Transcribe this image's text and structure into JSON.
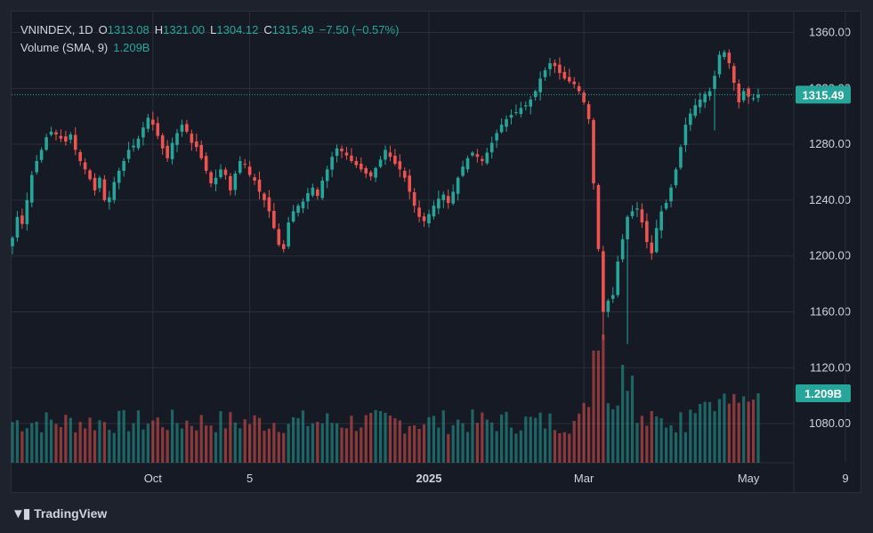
{
  "legend": {
    "symbol": "VNINDEX, 1D",
    "o_label": "O",
    "o_value": "1313.08",
    "h_label": "H",
    "h_value": "1321.00",
    "l_label": "L",
    "l_value": "1304.12",
    "c_label": "C",
    "c_value": "1315.49",
    "change": "−7.50 (−0.57%)",
    "volume_label": "Volume (SMA, 9)",
    "volume_value": "1.209B"
  },
  "badges": {
    "last_price": "1315.49",
    "last_volume": "1.209B"
  },
  "brand": {
    "name": "TradingView"
  },
  "colors": {
    "up": "#26a69a",
    "down": "#ef5350",
    "background": "#161a25",
    "grid": "#2a2e39",
    "text": "#d1d4dc"
  },
  "chart_data": {
    "type": "candlestick",
    "price_axis": {
      "ticks": [
        1360,
        1320,
        1280,
        1240,
        1200,
        1160,
        1120,
        1080
      ],
      "tick_labels": [
        "1360.00",
        "1320.00",
        "1280.00",
        "1240.00",
        "1200.00",
        "1160.00",
        "1120.00",
        "1080.00"
      ],
      "ylim": [
        1052,
        1375
      ]
    },
    "time_axis": {
      "labels": [
        {
          "text": "Oct",
          "index": 29,
          "bold": false
        },
        {
          "text": "5",
          "index": 49,
          "bold": false
        },
        {
          "text": "2025",
          "index": 86,
          "bold": true
        },
        {
          "text": "Mar",
          "index": 118,
          "bold": false
        },
        {
          "text": "May",
          "index": 152,
          "bold": false
        },
        {
          "text": "9",
          "index": 172,
          "bold": false
        }
      ]
    },
    "last_close": 1315.49,
    "series": {
      "ohlc_close": [
        1213,
        1228,
        1223,
        1240,
        1258,
        1268,
        1276,
        1285,
        1289,
        1287,
        1284,
        1282,
        1287,
        1276,
        1268,
        1262,
        1255,
        1247,
        1256,
        1240,
        1242,
        1253,
        1261,
        1268,
        1276,
        1279,
        1284,
        1292,
        1299,
        1294,
        1286,
        1277,
        1270,
        1281,
        1288,
        1294,
        1289,
        1281,
        1278,
        1270,
        1261,
        1252,
        1256,
        1262,
        1258,
        1247,
        1259,
        1268,
        1266,
        1258,
        1254,
        1246,
        1240,
        1232,
        1220,
        1208,
        1205,
        1224,
        1232,
        1236,
        1239,
        1245,
        1249,
        1243,
        1254,
        1262,
        1271,
        1277,
        1275,
        1272,
        1268,
        1265,
        1262,
        1259,
        1257,
        1263,
        1269,
        1276,
        1271,
        1266,
        1262,
        1256,
        1246,
        1236,
        1228,
        1225,
        1230,
        1236,
        1241,
        1244,
        1238,
        1246,
        1256,
        1264,
        1270,
        1274,
        1271,
        1268,
        1274,
        1281,
        1288,
        1294,
        1298,
        1301,
        1303,
        1306,
        1308,
        1312,
        1318,
        1327,
        1333,
        1338,
        1336,
        1331,
        1327,
        1325,
        1323,
        1318,
        1310,
        1298,
        1252,
        1205,
        1160,
        1168,
        1172,
        1196,
        1212,
        1228,
        1232,
        1234,
        1224,
        1210,
        1202,
        1220,
        1232,
        1238,
        1249,
        1262,
        1278,
        1294,
        1302,
        1308,
        1312,
        1316,
        1318,
        1329,
        1344,
        1346,
        1338,
        1324,
        1310,
        1318,
        1314,
        1313,
        1315.49
      ],
      "x_start": 0
    },
    "volume": {
      "axis_ticks": [],
      "last_value_label": "1.209B"
    }
  }
}
